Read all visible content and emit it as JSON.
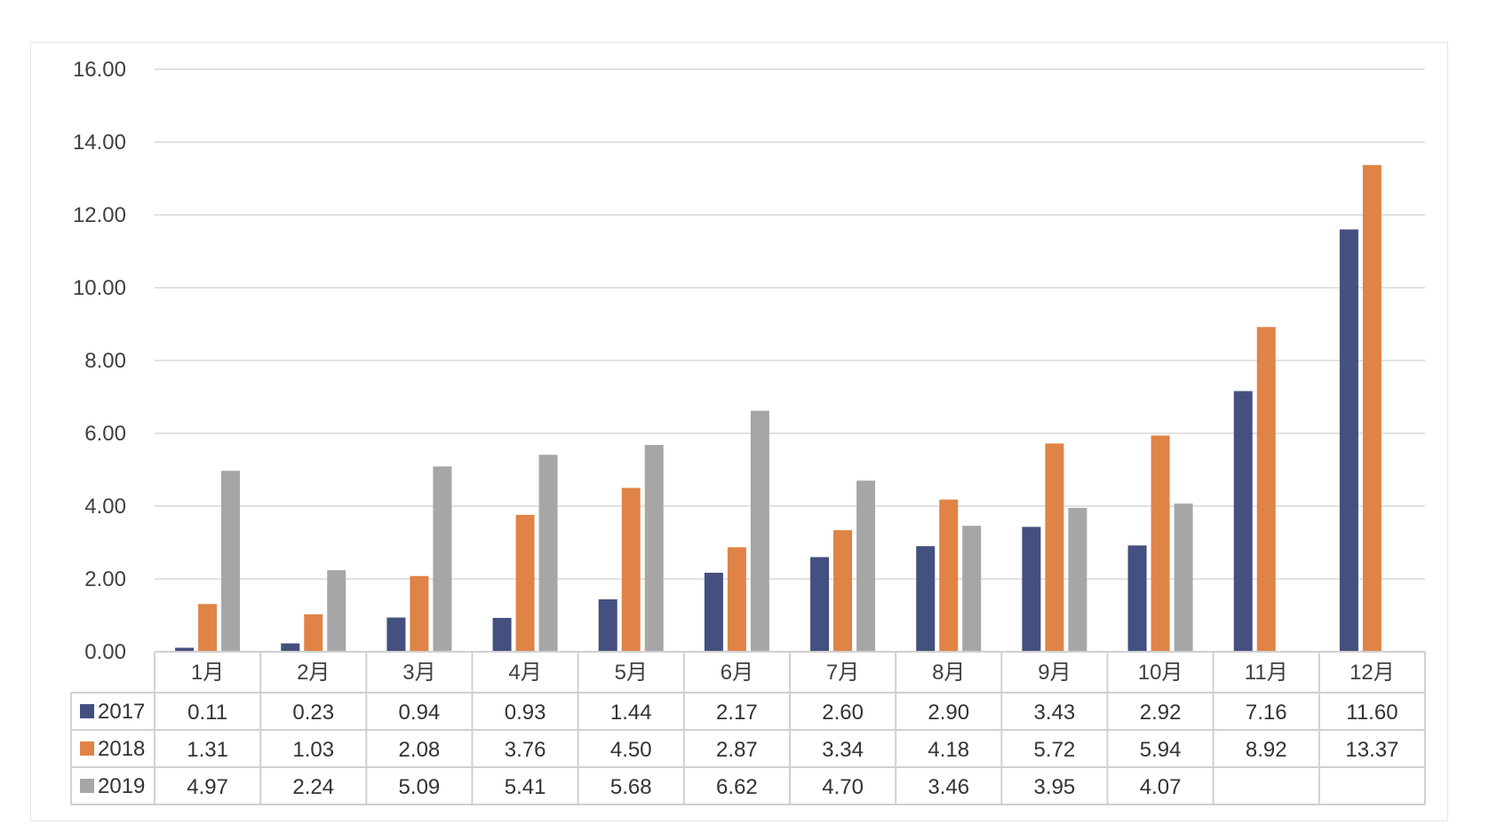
{
  "chart_data": {
    "type": "bar",
    "title": "",
    "xlabel": "",
    "ylabel": "",
    "ylim": [
      0,
      16
    ],
    "yticks": [
      "0.00",
      "2.00",
      "4.00",
      "6.00",
      "8.00",
      "10.00",
      "12.00",
      "14.00",
      "16.00"
    ],
    "categories": [
      "1月",
      "2月",
      "3月",
      "4月",
      "5月",
      "6月",
      "7月",
      "8月",
      "9月",
      "10月",
      "11月",
      "12月"
    ],
    "grid": true,
    "legend": "data-table",
    "series": [
      {
        "name": "2017",
        "color": "#44507f",
        "values": [
          0.11,
          0.23,
          0.94,
          0.93,
          1.44,
          2.17,
          2.6,
          2.9,
          3.43,
          2.92,
          7.16,
          11.6
        ],
        "labels": [
          "0.11",
          "0.23",
          "0.94",
          "0.93",
          "1.44",
          "2.17",
          "2.60",
          "2.90",
          "3.43",
          "2.92",
          "7.16",
          "11.60"
        ]
      },
      {
        "name": "2018",
        "color": "#e08346",
        "values": [
          1.31,
          1.03,
          2.08,
          3.76,
          4.5,
          2.87,
          3.34,
          4.18,
          5.72,
          5.94,
          8.92,
          13.37
        ],
        "labels": [
          "1.31",
          "1.03",
          "2.08",
          "3.76",
          "4.50",
          "2.87",
          "3.34",
          "4.18",
          "5.72",
          "5.94",
          "8.92",
          "13.37"
        ]
      },
      {
        "name": "2019",
        "color": "#a6a6a6",
        "values": [
          4.97,
          2.24,
          5.09,
          5.41,
          5.68,
          6.62,
          4.7,
          3.46,
          3.95,
          4.07,
          null,
          null
        ],
        "labels": [
          "4.97",
          "2.24",
          "5.09",
          "5.41",
          "5.68",
          "6.62",
          "4.70",
          "3.46",
          "3.95",
          "4.07",
          "",
          ""
        ]
      }
    ]
  }
}
